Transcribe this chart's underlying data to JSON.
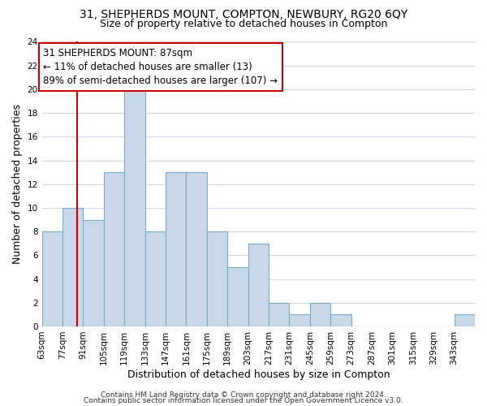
{
  "title": "31, SHEPHERDS MOUNT, COMPTON, NEWBURY, RG20 6QY",
  "subtitle": "Size of property relative to detached houses in Compton",
  "xlabel": "Distribution of detached houses by size in Compton",
  "ylabel": "Number of detached properties",
  "bin_labels": [
    "63sqm",
    "77sqm",
    "91sqm",
    "105sqm",
    "119sqm",
    "133sqm",
    "147sqm",
    "161sqm",
    "175sqm",
    "189sqm",
    "203sqm",
    "217sqm",
    "231sqm",
    "245sqm",
    "259sqm",
    "273sqm",
    "287sqm",
    "301sqm",
    "315sqm",
    "329sqm",
    "343sqm"
  ],
  "bin_starts": [
    63,
    77,
    91,
    105,
    119,
    133,
    147,
    161,
    175,
    189,
    203,
    217,
    231,
    245,
    259,
    273,
    287,
    301,
    315,
    329,
    343
  ],
  "bin_width": 14,
  "counts": [
    8,
    10,
    9,
    13,
    20,
    8,
    13,
    13,
    8,
    5,
    7,
    2,
    1,
    2,
    1,
    0,
    0,
    0,
    0,
    0,
    1
  ],
  "bar_color": "#c8d8e8",
  "bar_edge_color": "#7aaac8",
  "property_sqm": 87,
  "red_line_color": "#cc0000",
  "annotation_line1": "31 SHEPHERDS MOUNT: 87sqm",
  "annotation_line2": "← 11% of detached houses are smaller (13)",
  "annotation_line3": "89% of semi-detached houses are larger (107) →",
  "annotation_box_edge": "#cc0000",
  "ylim": [
    0,
    24
  ],
  "yticks": [
    0,
    2,
    4,
    6,
    8,
    10,
    12,
    14,
    16,
    18,
    20,
    22,
    24
  ],
  "footer_line1": "Contains HM Land Registry data © Crown copyright and database right 2024.",
  "footer_line2": "Contains public sector information licensed under the Open Government Licence v3.0.",
  "background_color": "#ffffff",
  "grid_color": "#d0d8e8",
  "title_fontsize": 10,
  "subtitle_fontsize": 9,
  "axis_label_fontsize": 9,
  "tick_fontsize": 7.5,
  "annotation_fontsize": 8.5,
  "footer_fontsize": 6.5
}
